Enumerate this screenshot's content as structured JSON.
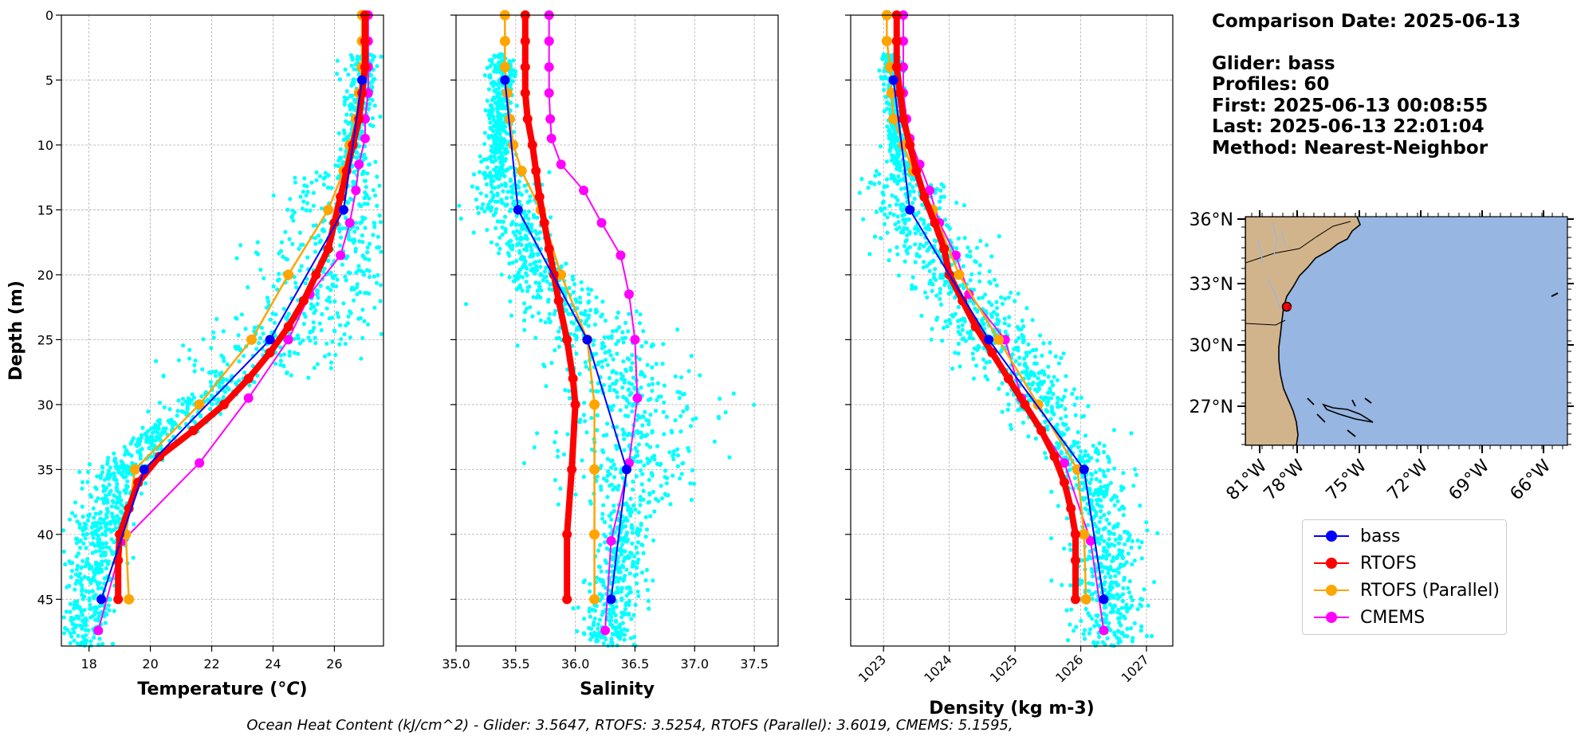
{
  "info": {
    "comparison_date": "Comparison Date: 2025-06-13",
    "glider": "Glider: bass",
    "profiles": "Profiles: 60",
    "first": "First: 2025-06-13 00:08:55",
    "last": "Last: 2025-06-13 22:01:04",
    "method": "Method: Nearest-Neighbor"
  },
  "footer": "Ocean Heat Content (kJ/cm^2) - Glider: 3.5647,  RTOFS: 3.5254,  RTOFS (Parallel): 3.6019,  CMEMS: 5.1595,",
  "colors": {
    "bass": "#0000ff",
    "RTOFS": "#ff0000",
    "RTOFS (Parallel)": "#ffa500",
    "CMEMS": "#ff00ff",
    "scatter": "#00ffff",
    "land": "#d2b48c",
    "ocean": "#97b6e1"
  },
  "legend": [
    {
      "name": "bass",
      "color": "#0000ff"
    },
    {
      "name": "RTOFS",
      "color": "#ff0000"
    },
    {
      "name": "RTOFS (Parallel)",
      "color": "#ffa500"
    },
    {
      "name": "CMEMS",
      "color": "#ff00ff"
    }
  ],
  "chart_data": [
    {
      "type": "line",
      "xlabel": "Temperature (°C)",
      "ylabel": "Depth (m)",
      "xlim": [
        17.1,
        27.6
      ],
      "ylim": [
        48.6,
        0
      ],
      "xticks": [
        "18",
        "20",
        "22",
        "24",
        "26"
      ],
      "yticks": [
        "0",
        "5",
        "10",
        "15",
        "20",
        "25",
        "30",
        "35",
        "40",
        "45"
      ],
      "grid": true,
      "glider_scatter": {
        "depth_range": [
          3,
          48.6
        ],
        "color": "cyan",
        "note": "glider profile observations"
      },
      "series": [
        {
          "name": "bass",
          "depth": [
            5,
            15,
            25,
            35,
            45
          ],
          "values": [
            26.9,
            26.3,
            23.9,
            19.8,
            18.4
          ]
        },
        {
          "name": "RTOFS",
          "depth": [
            0,
            2,
            4,
            6,
            8,
            10,
            12,
            14,
            16,
            18,
            20,
            22,
            24,
            26,
            28,
            30,
            32,
            34,
            36,
            38,
            40,
            42,
            45
          ],
          "values": [
            27.0,
            27.0,
            27.0,
            26.9,
            26.8,
            26.6,
            26.4,
            26.2,
            26.0,
            25.8,
            25.4,
            25.0,
            24.5,
            23.9,
            23.2,
            22.4,
            21.4,
            20.3,
            19.6,
            19.3,
            19.0,
            18.95,
            18.95
          ]
        },
        {
          "name": "RTOFS (Parallel)",
          "depth": [
            0,
            2,
            4,
            6,
            8,
            10,
            12,
            15,
            20,
            25,
            30,
            35,
            40,
            45
          ],
          "values": [
            26.9,
            26.9,
            26.9,
            26.8,
            26.7,
            26.5,
            26.3,
            25.8,
            24.5,
            23.3,
            21.6,
            19.5,
            19.2,
            19.3
          ]
        },
        {
          "name": "CMEMS",
          "depth": [
            0,
            2,
            4,
            6,
            8,
            9.5,
            11.5,
            13.5,
            16,
            18.5,
            21.5,
            25,
            29.5,
            34.5,
            40.5,
            47.4
          ],
          "values": [
            27.1,
            27.1,
            27.1,
            27.1,
            27.0,
            27.0,
            26.8,
            26.7,
            26.5,
            26.2,
            25.2,
            24.5,
            23.2,
            21.6,
            19.1,
            18.3
          ]
        }
      ]
    },
    {
      "type": "line",
      "xlabel": "Salinity",
      "xlim": [
        35.0,
        37.7
      ],
      "ylim": [
        48.6,
        0
      ],
      "xticks": [
        "35.0",
        "35.5",
        "36.0",
        "36.5",
        "37.0",
        "37.5"
      ],
      "grid": true,
      "glider_scatter": {
        "depth_range": [
          3,
          48.6
        ],
        "color": "cyan",
        "note": "glider profile observations"
      },
      "series": [
        {
          "name": "bass",
          "depth": [
            5,
            15,
            25,
            35,
            45
          ],
          "values": [
            35.41,
            35.52,
            36.1,
            36.43,
            36.3
          ]
        },
        {
          "name": "RTOFS",
          "depth": [
            0,
            2,
            4,
            6,
            8,
            10,
            12,
            14,
            16,
            18,
            20,
            22,
            25,
            28,
            30,
            35,
            40,
            45
          ],
          "values": [
            35.58,
            35.58,
            35.58,
            35.58,
            35.6,
            35.64,
            35.67,
            35.7,
            35.74,
            35.78,
            35.82,
            35.86,
            35.93,
            35.98,
            36.0,
            35.97,
            35.93,
            35.93
          ]
        },
        {
          "name": "RTOFS (Parallel)",
          "depth": [
            0,
            2,
            4,
            6,
            8,
            10,
            12,
            15,
            20,
            25,
            30,
            35,
            40,
            45
          ],
          "values": [
            35.41,
            35.41,
            35.41,
            35.43,
            35.45,
            35.48,
            35.55,
            35.71,
            35.88,
            36.1,
            36.16,
            36.16,
            36.16,
            36.16
          ]
        },
        {
          "name": "CMEMS",
          "depth": [
            0,
            2,
            4,
            6,
            8,
            9.5,
            11.5,
            13.5,
            16,
            18.5,
            21.5,
            25,
            29.5,
            34.5,
            40.5,
            47.4
          ],
          "values": [
            35.78,
            35.78,
            35.78,
            35.78,
            35.79,
            35.8,
            35.88,
            36.07,
            36.22,
            36.38,
            36.45,
            36.5,
            36.52,
            36.45,
            36.3,
            36.25
          ]
        }
      ]
    },
    {
      "type": "line",
      "xlabel": "Density (kg m-3)",
      "xlim": [
        1022.5,
        1027.4
      ],
      "ylim": [
        48.6,
        0
      ],
      "xticks": [
        "1023",
        "1024",
        "1025",
        "1026",
        "1027"
      ],
      "grid": true,
      "glider_scatter": {
        "depth_range": [
          3,
          48.6
        ],
        "color": "cyan",
        "note": "glider profile observations"
      },
      "series": [
        {
          "name": "bass",
          "depth": [
            5,
            15,
            25,
            35,
            45
          ],
          "values": [
            1023.15,
            1023.4,
            1024.6,
            1026.05,
            1026.35
          ]
        },
        {
          "name": "RTOFS",
          "depth": [
            0,
            2,
            4,
            6,
            8,
            10,
            12,
            14,
            16,
            18,
            20,
            22,
            24,
            26,
            28,
            30,
            32,
            34,
            36,
            38,
            40,
            42,
            45
          ],
          "values": [
            1023.2,
            1023.2,
            1023.2,
            1023.25,
            1023.3,
            1023.4,
            1023.5,
            1023.62,
            1023.78,
            1023.92,
            1024.0,
            1024.2,
            1024.4,
            1024.65,
            1024.9,
            1025.15,
            1025.4,
            1025.6,
            1025.75,
            1025.85,
            1025.92,
            1025.92,
            1025.92
          ]
        },
        {
          "name": "RTOFS (Parallel)",
          "depth": [
            0,
            2,
            4,
            6,
            8,
            10,
            12,
            15,
            20,
            25,
            30,
            35,
            40,
            45
          ],
          "values": [
            1023.05,
            1023.05,
            1023.1,
            1023.12,
            1023.15,
            1023.3,
            1023.45,
            1023.75,
            1024.15,
            1024.75,
            1025.35,
            1025.95,
            1026.05,
            1026.08
          ]
        },
        {
          "name": "CMEMS",
          "depth": [
            0,
            2,
            4,
            6,
            8,
            9.5,
            11.5,
            13.5,
            16,
            18.5,
            21.5,
            25,
            29.5,
            34.5,
            40.5,
            47.4
          ],
          "values": [
            1023.3,
            1023.3,
            1023.3,
            1023.3,
            1023.35,
            1023.4,
            1023.55,
            1023.7,
            1023.85,
            1024.1,
            1024.3,
            1024.85,
            1025.1,
            1025.75,
            1026.15,
            1026.35
          ]
        }
      ]
    }
  ],
  "map": {
    "lat_ticks": [
      "36°N",
      "33°N",
      "30°N",
      "27°N"
    ],
    "lon_ticks": [
      "81°W",
      "78°W",
      "75°W",
      "72°W",
      "69°W",
      "66°W"
    ],
    "marker_label": "glider location"
  }
}
